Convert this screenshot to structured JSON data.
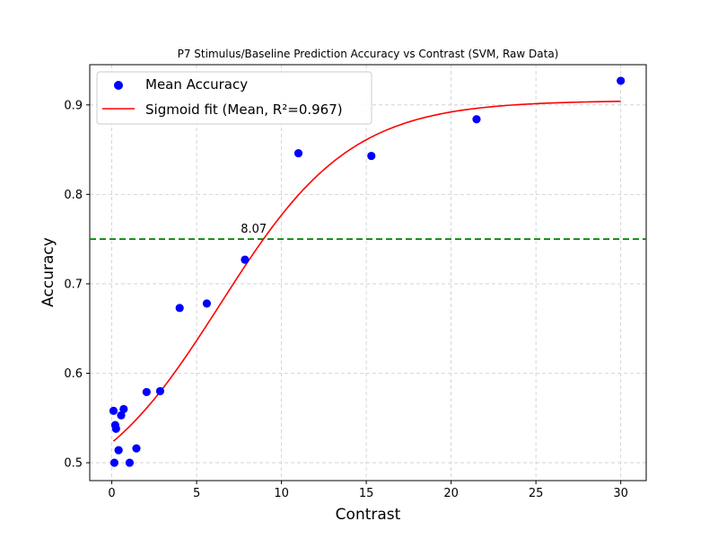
{
  "chart_data": {
    "type": "scatter",
    "title": "P7 Stimulus/Baseline Prediction Accuracy vs Contrast (SVM, Raw Data)",
    "xlabel": "Contrast",
    "ylabel": "Accuracy",
    "xlim": [
      -1.3,
      31.5
    ],
    "ylim": [
      0.48,
      0.945
    ],
    "xticks": [
      0,
      5,
      10,
      15,
      20,
      25,
      30
    ],
    "yticks": [
      0.5,
      0.6,
      0.7,
      0.8,
      0.9
    ],
    "ytick_labels": [
      "0.5",
      "0.6",
      "0.7",
      "0.8",
      "0.9"
    ],
    "grid": true,
    "legend_placement": "top-left",
    "series": [
      {
        "name": "Mean Accuracy",
        "kind": "scatter",
        "color": "#0000ff",
        "points": [
          {
            "x": 0.1,
            "y": 0.558
          },
          {
            "x": 0.15,
            "y": 0.5
          },
          {
            "x": 0.2,
            "y": 0.542
          },
          {
            "x": 0.25,
            "y": 0.538
          },
          {
            "x": 0.4,
            "y": 0.514
          },
          {
            "x": 0.55,
            "y": 0.553
          },
          {
            "x": 0.7,
            "y": 0.56
          },
          {
            "x": 1.05,
            "y": 0.5
          },
          {
            "x": 1.45,
            "y": 0.516
          },
          {
            "x": 2.05,
            "y": 0.579
          },
          {
            "x": 2.85,
            "y": 0.58
          },
          {
            "x": 4.0,
            "y": 0.673
          },
          {
            "x": 5.6,
            "y": 0.678
          },
          {
            "x": 7.85,
            "y": 0.727
          },
          {
            "x": 11.0,
            "y": 0.846
          },
          {
            "x": 15.3,
            "y": 0.843
          },
          {
            "x": 21.5,
            "y": 0.884
          },
          {
            "x": 30.0,
            "y": 0.927
          }
        ]
      },
      {
        "name": "Sigmoid fit (Mean, R²=0.967)",
        "kind": "line",
        "color": "#ff0000",
        "model": {
          "bottom": 0.45,
          "top": 0.905,
          "x50": 6.4,
          "slope": 0.26,
          "x_start": 0.1,
          "x_end": 30.0
        }
      }
    ],
    "threshold": {
      "y": 0.75,
      "color": "#008000",
      "label": "8.07",
      "label_x": 7.6
    }
  }
}
